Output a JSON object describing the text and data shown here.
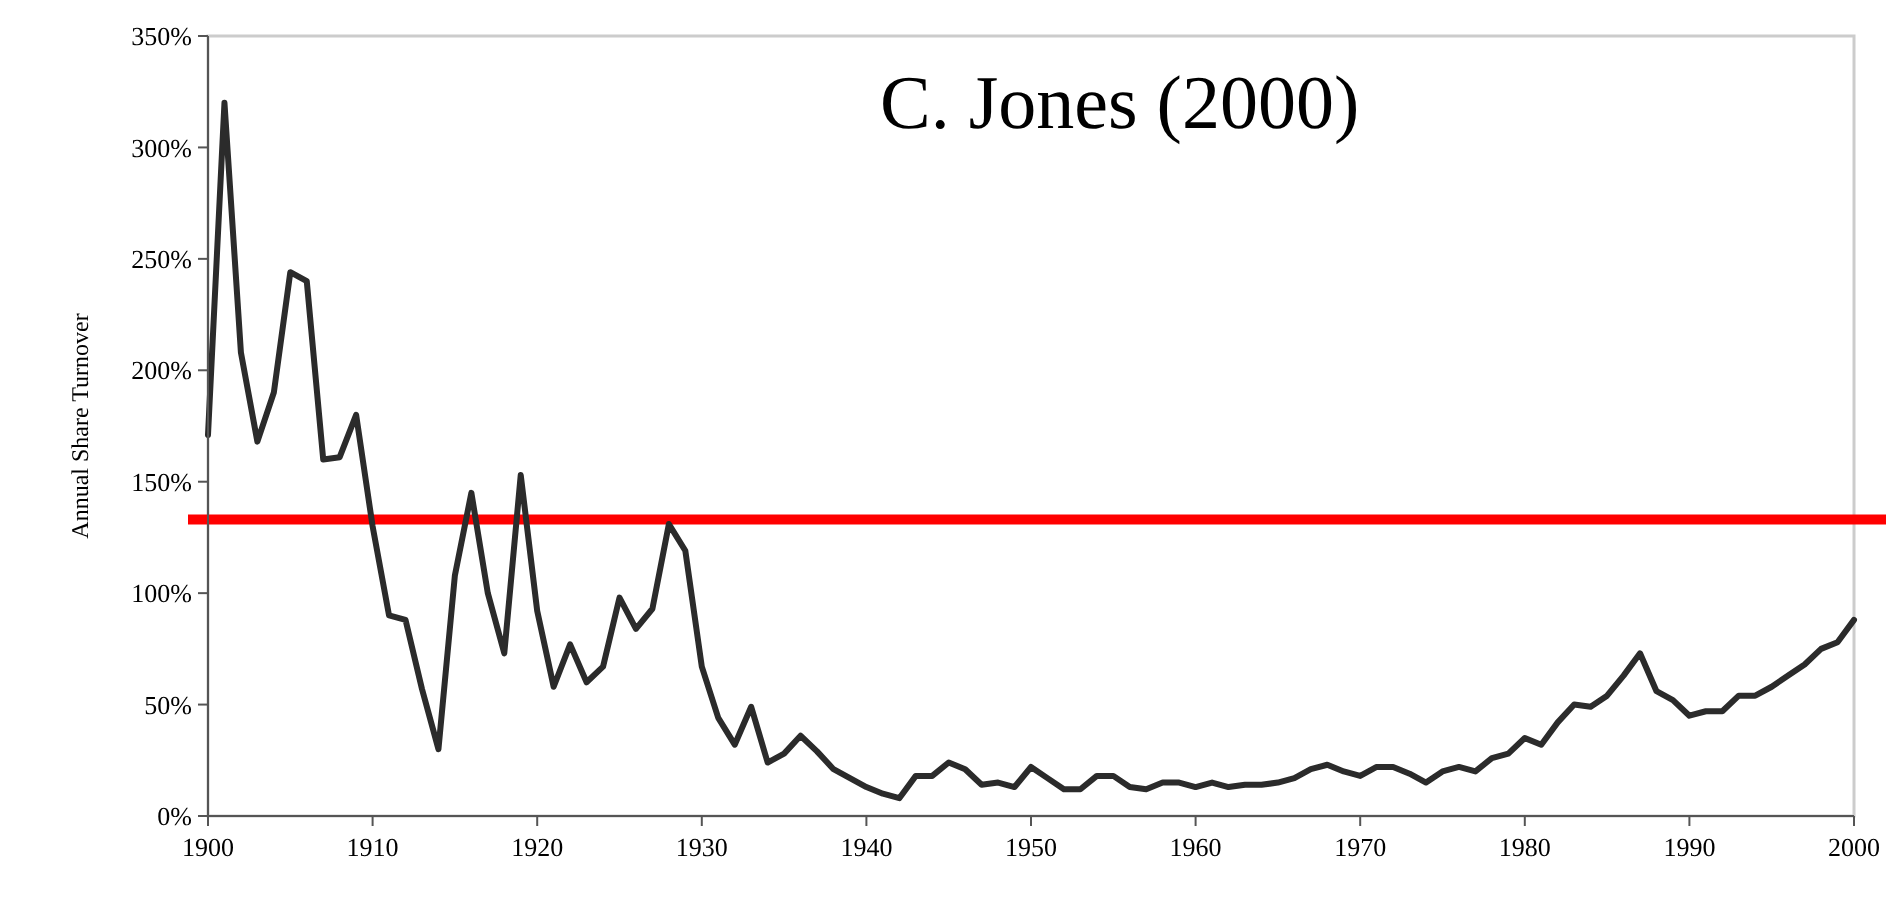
{
  "chart_data": {
    "type": "line",
    "ylabel": "Annual Share Turnover",
    "annotations": [
      "C. Jones (2000)"
    ],
    "x": [
      1900,
      1901,
      1902,
      1903,
      1904,
      1905,
      1906,
      1907,
      1908,
      1909,
      1910,
      1911,
      1912,
      1913,
      1914,
      1915,
      1916,
      1917,
      1918,
      1919,
      1920,
      1921,
      1922,
      1923,
      1924,
      1925,
      1926,
      1927,
      1928,
      1929,
      1930,
      1931,
      1932,
      1933,
      1934,
      1935,
      1936,
      1937,
      1938,
      1939,
      1940,
      1941,
      1942,
      1943,
      1944,
      1945,
      1946,
      1947,
      1948,
      1949,
      1950,
      1951,
      1952,
      1953,
      1954,
      1955,
      1956,
      1957,
      1958,
      1959,
      1960,
      1961,
      1962,
      1963,
      1964,
      1965,
      1966,
      1967,
      1968,
      1969,
      1970,
      1971,
      1972,
      1973,
      1974,
      1975,
      1976,
      1977,
      1978,
      1979,
      1980,
      1981,
      1982,
      1983,
      1984,
      1985,
      1986,
      1987,
      1988,
      1989,
      1990,
      1991,
      1992,
      1993,
      1994,
      1995,
      1996,
      1997,
      1998,
      1999,
      2000
    ],
    "series": [
      {
        "color": "#2b2b2b",
        "values": [
          171,
          320,
          208,
          168,
          190,
          244,
          240,
          160,
          161,
          180,
          130,
          90,
          88,
          57,
          30,
          108,
          145,
          100,
          73,
          153,
          92,
          58,
          77,
          60,
          67,
          98,
          84,
          93,
          131,
          119,
          67,
          44,
          32,
          49,
          24,
          28,
          36,
          29,
          21,
          17,
          13,
          10,
          8,
          18,
          18,
          24,
          21,
          14,
          15,
          13,
          22,
          17,
          12,
          12,
          18,
          18,
          13,
          12,
          15,
          15,
          13,
          15,
          13,
          14,
          14,
          15,
          17,
          21,
          23,
          20,
          18,
          22,
          22,
          19,
          15,
          20,
          22,
          20,
          26,
          28,
          35,
          32,
          42,
          50,
          49,
          54,
          63,
          73,
          56,
          52,
          45,
          47,
          47,
          54,
          54,
          58,
          63,
          68,
          75,
          78,
          88
        ]
      }
    ],
    "xlim": [
      1900,
      2000
    ],
    "xticks": [
      1900,
      1910,
      1920,
      1930,
      1940,
      1950,
      1960,
      1970,
      1980,
      1990,
      2000
    ],
    "ylim": [
      0,
      350
    ],
    "yticks": [
      {
        "value": 0,
        "label": "0%"
      },
      {
        "value": 50,
        "label": "50%"
      },
      {
        "value": 100,
        "label": "100%"
      },
      {
        "value": 150,
        "label": "150%"
      },
      {
        "value": 200,
        "label": "200%"
      },
      {
        "value": 250,
        "label": "250%"
      },
      {
        "value": 300,
        "label": "300%"
      },
      {
        "value": 350,
        "label": "350%"
      }
    ],
    "ref_lines": [
      {
        "axis": "y",
        "value": 133,
        "color": "#ff0000"
      }
    ],
    "marker": "none",
    "line_style": "solid"
  }
}
